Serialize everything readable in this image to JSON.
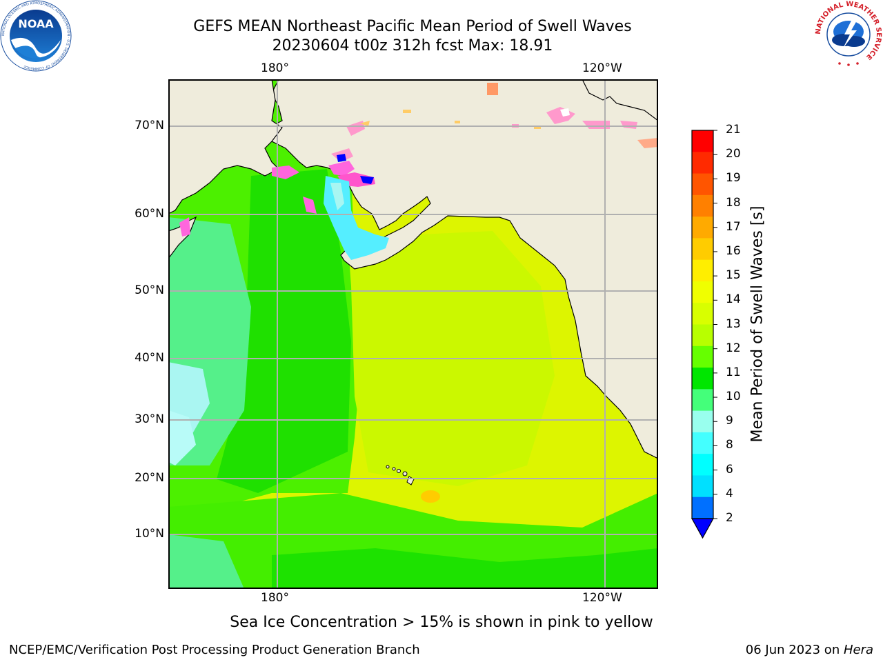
{
  "title": {
    "line1": "GEFS MEAN Northeast Pacific Mean Period of Swell Waves",
    "line2": "20230604 t00z 312h fcst   Max: 18.91"
  },
  "map": {
    "lon_labels_top": [
      "180°",
      "120°W"
    ],
    "lon_labels_bottom": [
      "180°",
      "120°W"
    ],
    "lat_labels": [
      "70°N",
      "60°N",
      "50°N",
      "40°N",
      "30°N",
      "20°N",
      "10°N"
    ],
    "colors": {
      "land": "#efecdc",
      "grid": "#b0b0b0",
      "coast": "#000000"
    }
  },
  "colorbar": {
    "label": "Mean Period of Swell Waves [s]",
    "ticks": [
      "21",
      "20",
      "19",
      "18",
      "17",
      "16",
      "15",
      "14",
      "13",
      "12",
      "11",
      "10",
      "9",
      "8",
      "6",
      "4",
      "2"
    ],
    "colors": [
      "#ff0000",
      "#ff2a00",
      "#ff5500",
      "#ff8000",
      "#ffaa00",
      "#ffcc00",
      "#ffee00",
      "#f0ff00",
      "#d8ff00",
      "#b8ff00",
      "#66ff00",
      "#00e600",
      "#44ff7a",
      "#99ffee",
      "#44ffff",
      "#00ffff",
      "#00e0ff",
      "#0070ff"
    ],
    "underflow_color": "#0000ff"
  },
  "caption": "Sea Ice Concentration > 15% is shown in pink to yellow",
  "footer": {
    "left": "NCEP/EMC/Verification Post Processing Product Generation Branch",
    "right_text": "06 Jun 2023 on ",
    "right_italic": "Hera"
  },
  "logos": {
    "noaa": {
      "text": "NOAA",
      "ring_text": "NATIONAL OCEANIC AND ATMOSPHERIC ADMINISTRATION · U.S. DEPARTMENT OF COMMERCE"
    },
    "nws": {
      "ring_text": "NATIONAL WEATHER SERVICE"
    }
  }
}
